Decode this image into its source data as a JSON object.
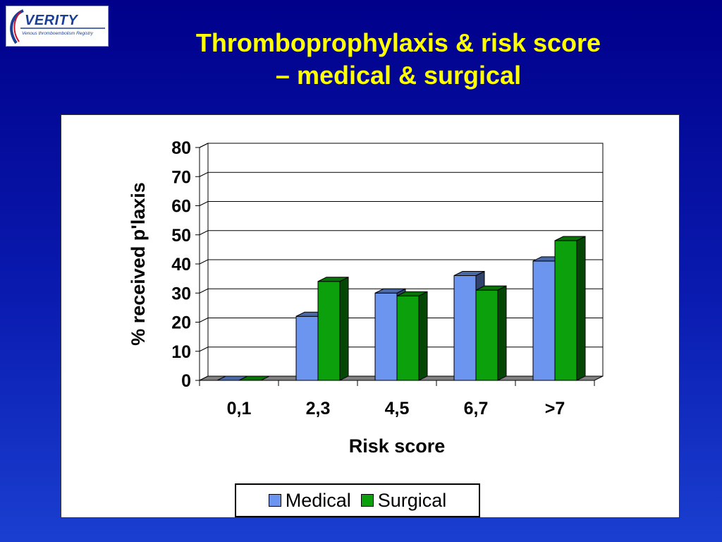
{
  "logo": {
    "word": "VERITY",
    "tagline": "Venous thromboembolism Registry"
  },
  "slide": {
    "title_line1": "Thromboprophylaxis & risk score",
    "title_line2": "– medical & surgical"
  },
  "colors": {
    "medical": "#6b95ee",
    "surgical": "#0ca10c",
    "title": "#ffff00"
  },
  "chart_data": {
    "type": "bar",
    "categories": [
      "0,1",
      "2,3",
      "4,5",
      "6,7",
      ">7"
    ],
    "series": [
      {
        "name": "Medical",
        "values": [
          0,
          22,
          30,
          36,
          41
        ]
      },
      {
        "name": "Surgical",
        "values": [
          0,
          34,
          29,
          31,
          48
        ]
      }
    ],
    "title": "",
    "xlabel": "Risk score",
    "ylabel": "% received p'laxis",
    "ylim": [
      0,
      80
    ],
    "yticks": [
      "0",
      "10",
      "20",
      "30",
      "40",
      "50",
      "60",
      "70",
      "80"
    ],
    "grid": true,
    "style": "3d-clustered-column",
    "legend": "bottom"
  }
}
